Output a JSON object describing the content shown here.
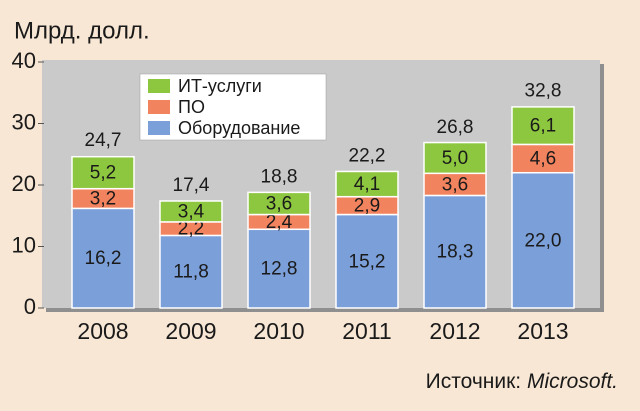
{
  "chart_data": {
    "type": "stacked_bar",
    "y_axis_label": "Млрд. долл.",
    "categories": [
      "2008",
      "2009",
      "2010",
      "2011",
      "2012",
      "2013"
    ],
    "series": [
      {
        "name": "Оборудование",
        "color": "#7b9fd8",
        "values": [
          16.2,
          11.8,
          12.8,
          15.2,
          18.3,
          22.0
        ],
        "value_labels": [
          "16,2",
          "11,8",
          "12,8",
          "15,2",
          "18,3",
          "22,0"
        ]
      },
      {
        "name": "ПО",
        "color": "#f2835f",
        "values": [
          3.2,
          2.2,
          2.4,
          2.9,
          3.6,
          4.6
        ],
        "value_labels": [
          "3,2",
          "2,2",
          "2,4",
          "2,9",
          "3,6",
          "4,6"
        ]
      },
      {
        "name": "ИТ-услуги",
        "color": "#8dc63f",
        "values": [
          5.2,
          3.4,
          3.6,
          4.1,
          5.0,
          6.1
        ],
        "value_labels": [
          "5,2",
          "3,4",
          "3,6",
          "4,1",
          "5,0",
          "6,1"
        ]
      }
    ],
    "totals": [
      24.7,
      17.4,
      18.8,
      22.2,
      26.8,
      32.8
    ],
    "total_labels": [
      "24,7",
      "17,4",
      "18,8",
      "22,2",
      "26,8",
      "32,8"
    ],
    "ylim": [
      0,
      40
    ],
    "yticks": [
      0,
      10,
      20,
      30,
      40
    ],
    "legend": "top-left",
    "source_prefix": "Источник:",
    "source_name": "Microsoft."
  }
}
